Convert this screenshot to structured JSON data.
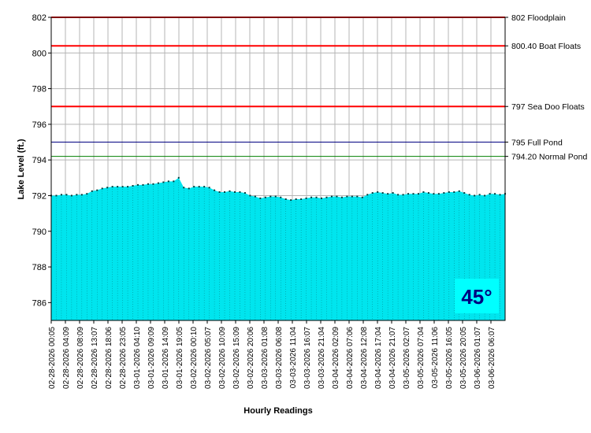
{
  "chart_data": {
    "type": "area",
    "xlabel": "Hourly Readings",
    "ylabel": "Lake Level (ft.)",
    "ylim": [
      785.0,
      802.0
    ],
    "y_ticks": [
      786,
      788,
      790,
      792,
      794,
      796,
      798,
      800,
      802
    ],
    "grid": true,
    "colors": {
      "fill": "#00e5ee",
      "point": "#003a3a",
      "frame": "#000000",
      "grid": "#b4b4b4"
    },
    "x_tick_labels": [
      "02-28-2026 00:05",
      "02-28-2026 04:09",
      "02-28-2026 08:09",
      "02-28-2026 13:07",
      "02-28-2026 18:06",
      "02-28-2026 23:05",
      "03-01-2026 04:10",
      "03-01-2026 09:09",
      "03-01-2026 14:09",
      "03-01-2026 19:05",
      "03-02-2026 00:10",
      "03-02-2026 05:07",
      "03-02-2026 10:09",
      "03-02-2026 15:09",
      "03-02-2026 20:06",
      "03-03-2026 01:08",
      "03-03-2026 06:08",
      "03-03-2026 11:04",
      "03-03-2026 16:07",
      "03-03-2026 21:04",
      "03-04-2026 02:09",
      "03-04-2026 07:06",
      "03-04-2026 12:08",
      "03-04-2026 17:04",
      "03-04-2026 21:07",
      "03-05-2026 02:07",
      "03-05-2026 07:04",
      "03-05-2026 11:06",
      "03-05-2026 16:05",
      "03-05-2026 20:05",
      "03-06-2026 01:07",
      "03-06-2026 06:07"
    ],
    "series": [
      {
        "values": [
          792.0,
          792.0,
          792.05,
          792.05,
          792.0,
          792.05,
          792.05,
          792.1,
          792.25,
          792.3,
          792.4,
          792.45,
          792.5,
          792.5,
          792.5,
          792.5,
          792.55,
          792.6,
          792.6,
          792.65,
          792.65,
          792.7,
          792.75,
          792.8,
          792.8,
          793.0,
          792.45,
          792.4,
          792.5,
          792.5,
          792.5,
          792.45,
          792.3,
          792.2,
          792.2,
          792.25,
          792.2,
          792.2,
          792.15,
          792.0,
          791.95,
          791.85,
          791.9,
          791.95,
          791.95,
          791.9,
          791.8,
          791.75,
          791.8,
          791.8,
          791.85,
          791.9,
          791.9,
          791.85,
          791.9,
          791.95,
          791.95,
          791.9,
          791.95,
          791.95,
          791.95,
          791.9,
          792.05,
          792.15,
          792.2,
          792.15,
          792.1,
          792.15,
          792.05,
          792.05,
          792.1,
          792.1,
          792.1,
          792.2,
          792.15,
          792.1,
          792.1,
          792.15,
          792.2,
          792.2,
          792.25,
          792.15,
          792.05,
          792.0,
          792.05,
          792.0,
          792.1,
          792.1,
          792.05,
          792.1
        ]
      }
    ],
    "reference_lines": [
      {
        "value": 802.0,
        "label": "802 Floodplain",
        "color": "#ff0000"
      },
      {
        "value": 800.4,
        "label": "800.40 Boat Floats",
        "color": "#ff0000"
      },
      {
        "value": 797.0,
        "label": "797 Sea Doo Floats",
        "color": "#ff0000"
      },
      {
        "value": 795.0,
        "label": "795 Full Pond",
        "color": "#000080"
      },
      {
        "value": 794.2,
        "label": "794.20 Normal Pond",
        "color": "#008000"
      }
    ],
    "badge": {
      "text": "45°",
      "text_color": "#000080",
      "background": "#00ffff"
    }
  }
}
